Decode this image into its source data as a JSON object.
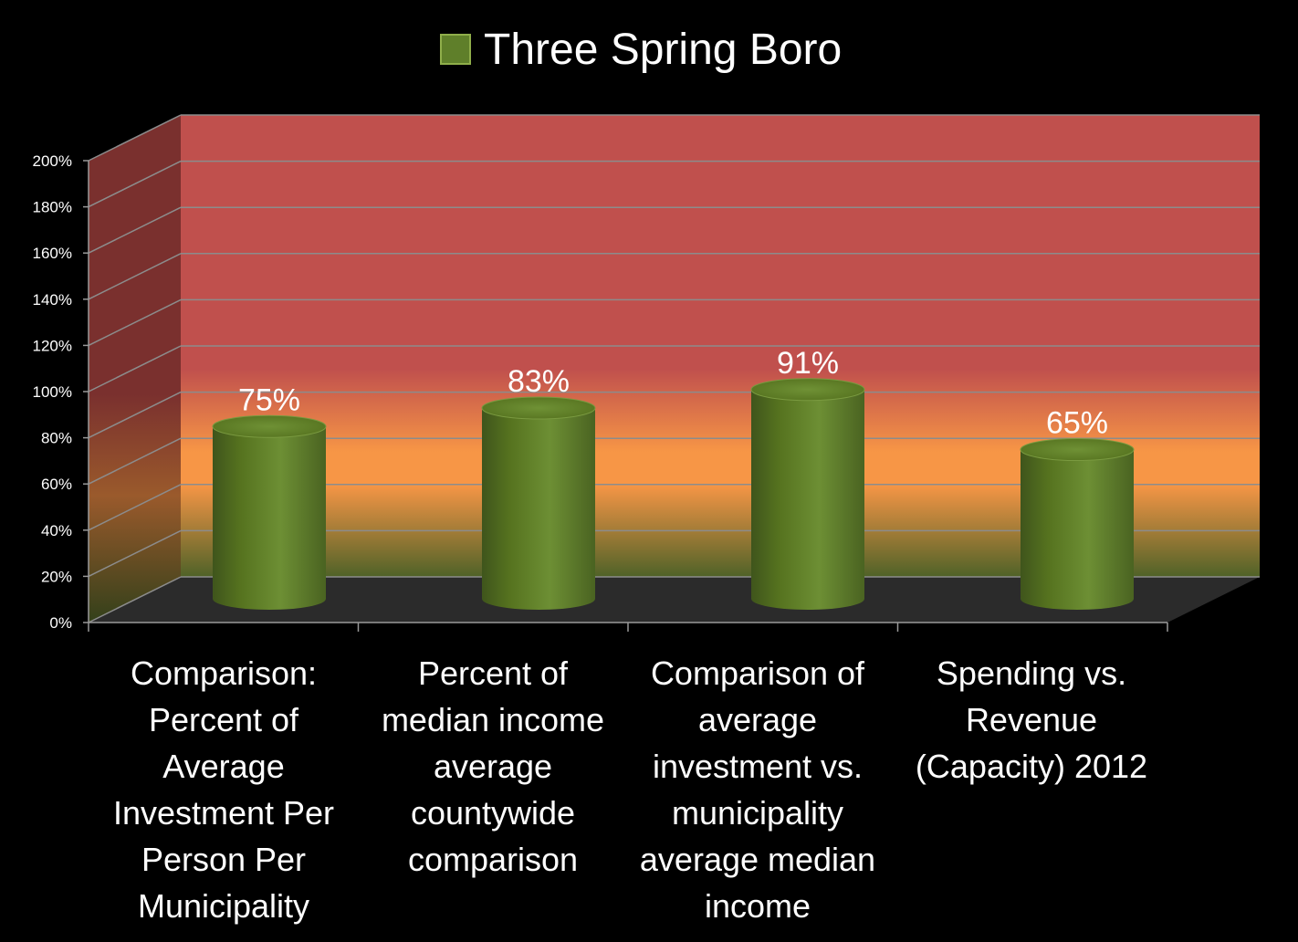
{
  "chart_data": {
    "type": "bar",
    "title": "",
    "xlabel": "",
    "ylabel": "",
    "ylim": [
      0,
      200
    ],
    "y_tick_step": 20,
    "y_tick_suffix": "%",
    "grid": true,
    "legend": {
      "position": "top",
      "entries": [
        "Three Spring Boro"
      ]
    },
    "categories": [
      "Comparison: Percent of Average Investment Per Person Per Municipality",
      "Percent of median income average countywide comparison",
      "Comparison of average investment vs. municipality average median income",
      "Spending vs. Revenue (Capacity) 2012"
    ],
    "series": [
      {
        "name": "Three Spring Boro",
        "values": [
          75,
          83,
          91,
          65
        ],
        "labels": [
          "75%",
          "83%",
          "91%",
          "65%"
        ]
      }
    ],
    "colors": {
      "series": "#5f7f2a",
      "wall_top": "#c0504d",
      "wall_mid": "#f79646",
      "wall_bottom": "#4f6228",
      "floor": "#2b2b2b",
      "text": "#ffffff"
    }
  }
}
